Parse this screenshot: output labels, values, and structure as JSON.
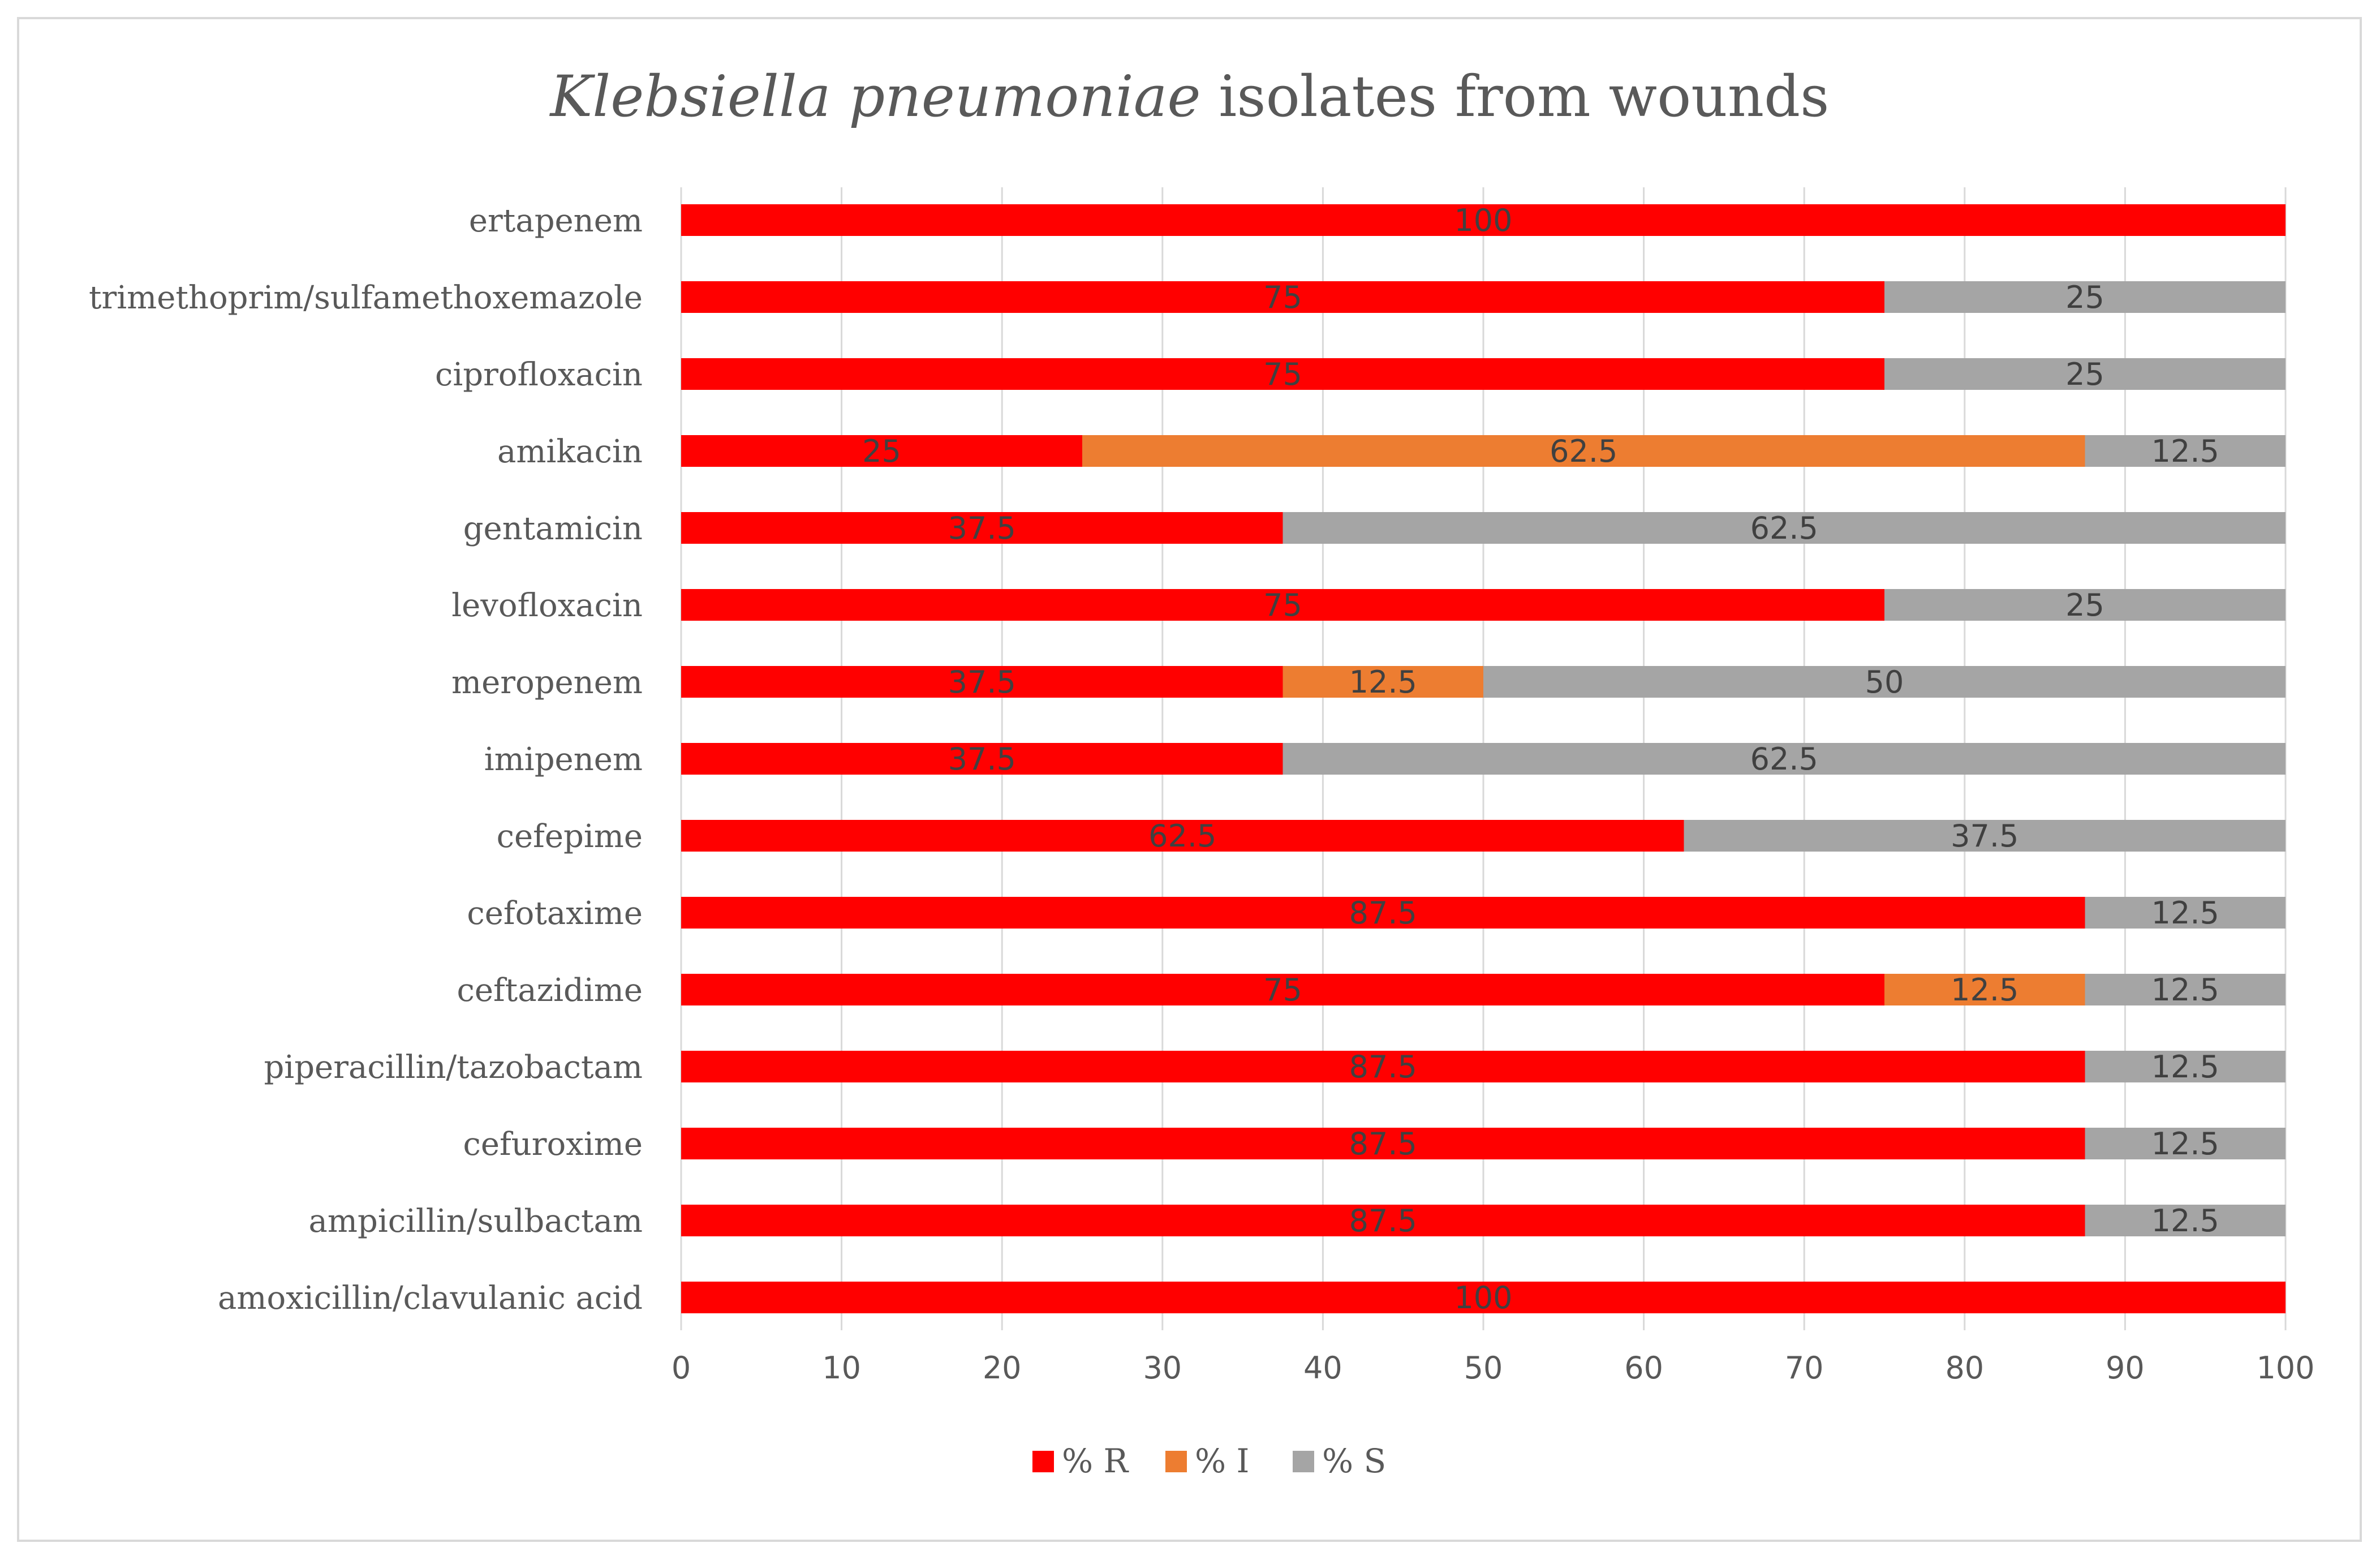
{
  "chart_data": {
    "type": "bar",
    "orientation": "horizontal",
    "stacked": true,
    "title": {
      "italic_part": "Klebsiella pneumoniae",
      "regular_part": " isolates from wounds"
    },
    "categories": [
      "ertapenem",
      "trimethoprim/sulfamethoxemazole",
      "ciprofloxacin",
      "amikacin",
      "gentamicin",
      "levofloxacin",
      "meropenem",
      "imipenem",
      "cefepime",
      "cefotaxime",
      "ceftazidime",
      "piperacillin/tazobactam",
      "cefuroxime",
      "ampicillin/sulbactam",
      "amoxicillin/clavulanic acid"
    ],
    "series": [
      {
        "name": "% R",
        "color": "#ff0000",
        "values": [
          100,
          75,
          75,
          25,
          37.5,
          75,
          37.5,
          37.5,
          62.5,
          87.5,
          75,
          87.5,
          87.5,
          87.5,
          100
        ]
      },
      {
        "name": "% I",
        "color": "#ed7d31",
        "values": [
          0,
          0,
          0,
          62.5,
          0,
          0,
          12.5,
          0,
          0,
          0,
          12.5,
          0,
          0,
          0,
          0
        ]
      },
      {
        "name": "% S",
        "color": "#a5a5a5",
        "values": [
          0,
          25,
          25,
          12.5,
          62.5,
          25,
          50,
          62.5,
          37.5,
          12.5,
          12.5,
          12.5,
          12.5,
          12.5,
          0
        ]
      }
    ],
    "xlim": [
      0,
      100
    ],
    "xticks": [
      "0",
      "10",
      "20",
      "30",
      "40",
      "50",
      "60",
      "70",
      "80",
      "90",
      "100"
    ],
    "xlabel": "",
    "ylabel": "",
    "grid": "vertical",
    "legend_position": "bottom"
  }
}
